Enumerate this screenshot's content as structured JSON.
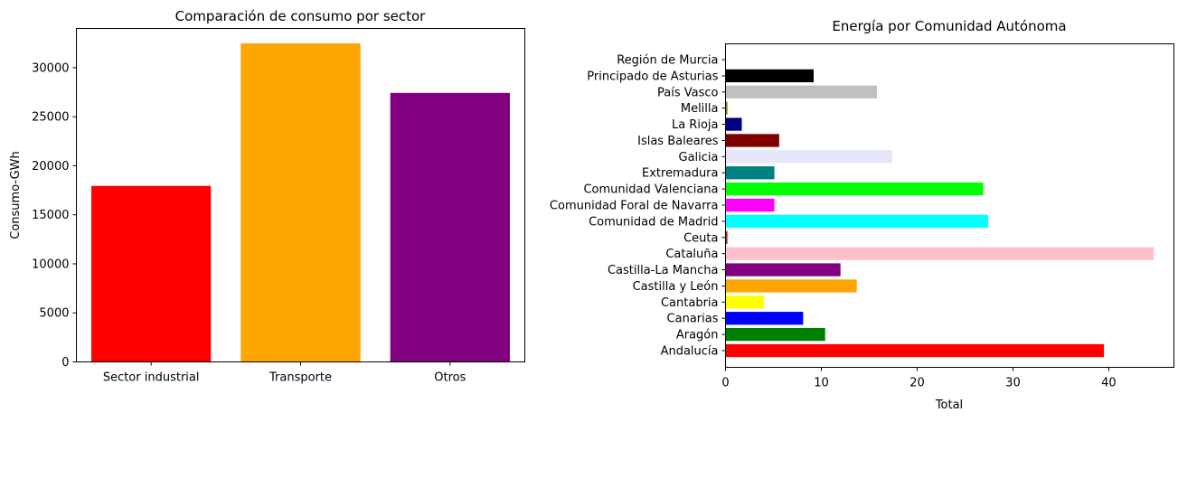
{
  "chart_data": [
    {
      "type": "bar",
      "title": "Comparación de consumo por sector",
      "xlabel": "",
      "ylabel": "Consumo-GWh",
      "ylim": [
        0,
        34000
      ],
      "yticks": [
        0,
        5000,
        10000,
        15000,
        20000,
        25000,
        30000
      ],
      "categories": [
        "Sector industrial",
        "Transporte",
        "Otros"
      ],
      "values": [
        17950,
        32480,
        27430
      ],
      "colors": [
        "#ff0000",
        "#ffa500",
        "#800080"
      ],
      "grid": false
    },
    {
      "type": "bar",
      "orientation": "horizontal",
      "title": "Energía por Comunidad Autónoma",
      "xlabel": "Total",
      "ylabel": "",
      "xlim": [
        0,
        46.8
      ],
      "xticks": [
        0,
        10,
        20,
        30,
        40
      ],
      "categories": [
        "Andalucía",
        "Aragón",
        "Canarias",
        "Cantabria",
        "Castilla y León",
        "Castilla-La Mancha",
        "Cataluña",
        "Ceuta",
        "Comunidad de Madrid",
        "Comunidad Foral de Navarra",
        "Comunidad Valenciana",
        "Extremadura",
        "Galicia",
        "Islas Baleares",
        "La Rioja",
        "Melilla",
        "País Vasco",
        "Principado de Asturias",
        "Región de Murcia"
      ],
      "values": [
        39.5,
        10.4,
        8.1,
        4.0,
        13.7,
        12.0,
        44.7,
        0.2,
        27.4,
        5.1,
        26.9,
        5.1,
        17.4,
        5.6,
        1.7,
        0.2,
        15.8,
        9.2,
        0.0
      ],
      "colors": [
        "#ff0000",
        "#008000",
        "#0000ff",
        "#ffff00",
        "#ffa500",
        "#800080",
        "#ffc0cb",
        "#a52a2a",
        "#00ffff",
        "#ff00ff",
        "#00ff00",
        "#008080",
        "#e6e6fa",
        "#800000",
        "#000080",
        "#808000",
        "#c0c0c0",
        "#000000",
        "#ffffff"
      ],
      "grid": false
    }
  ]
}
